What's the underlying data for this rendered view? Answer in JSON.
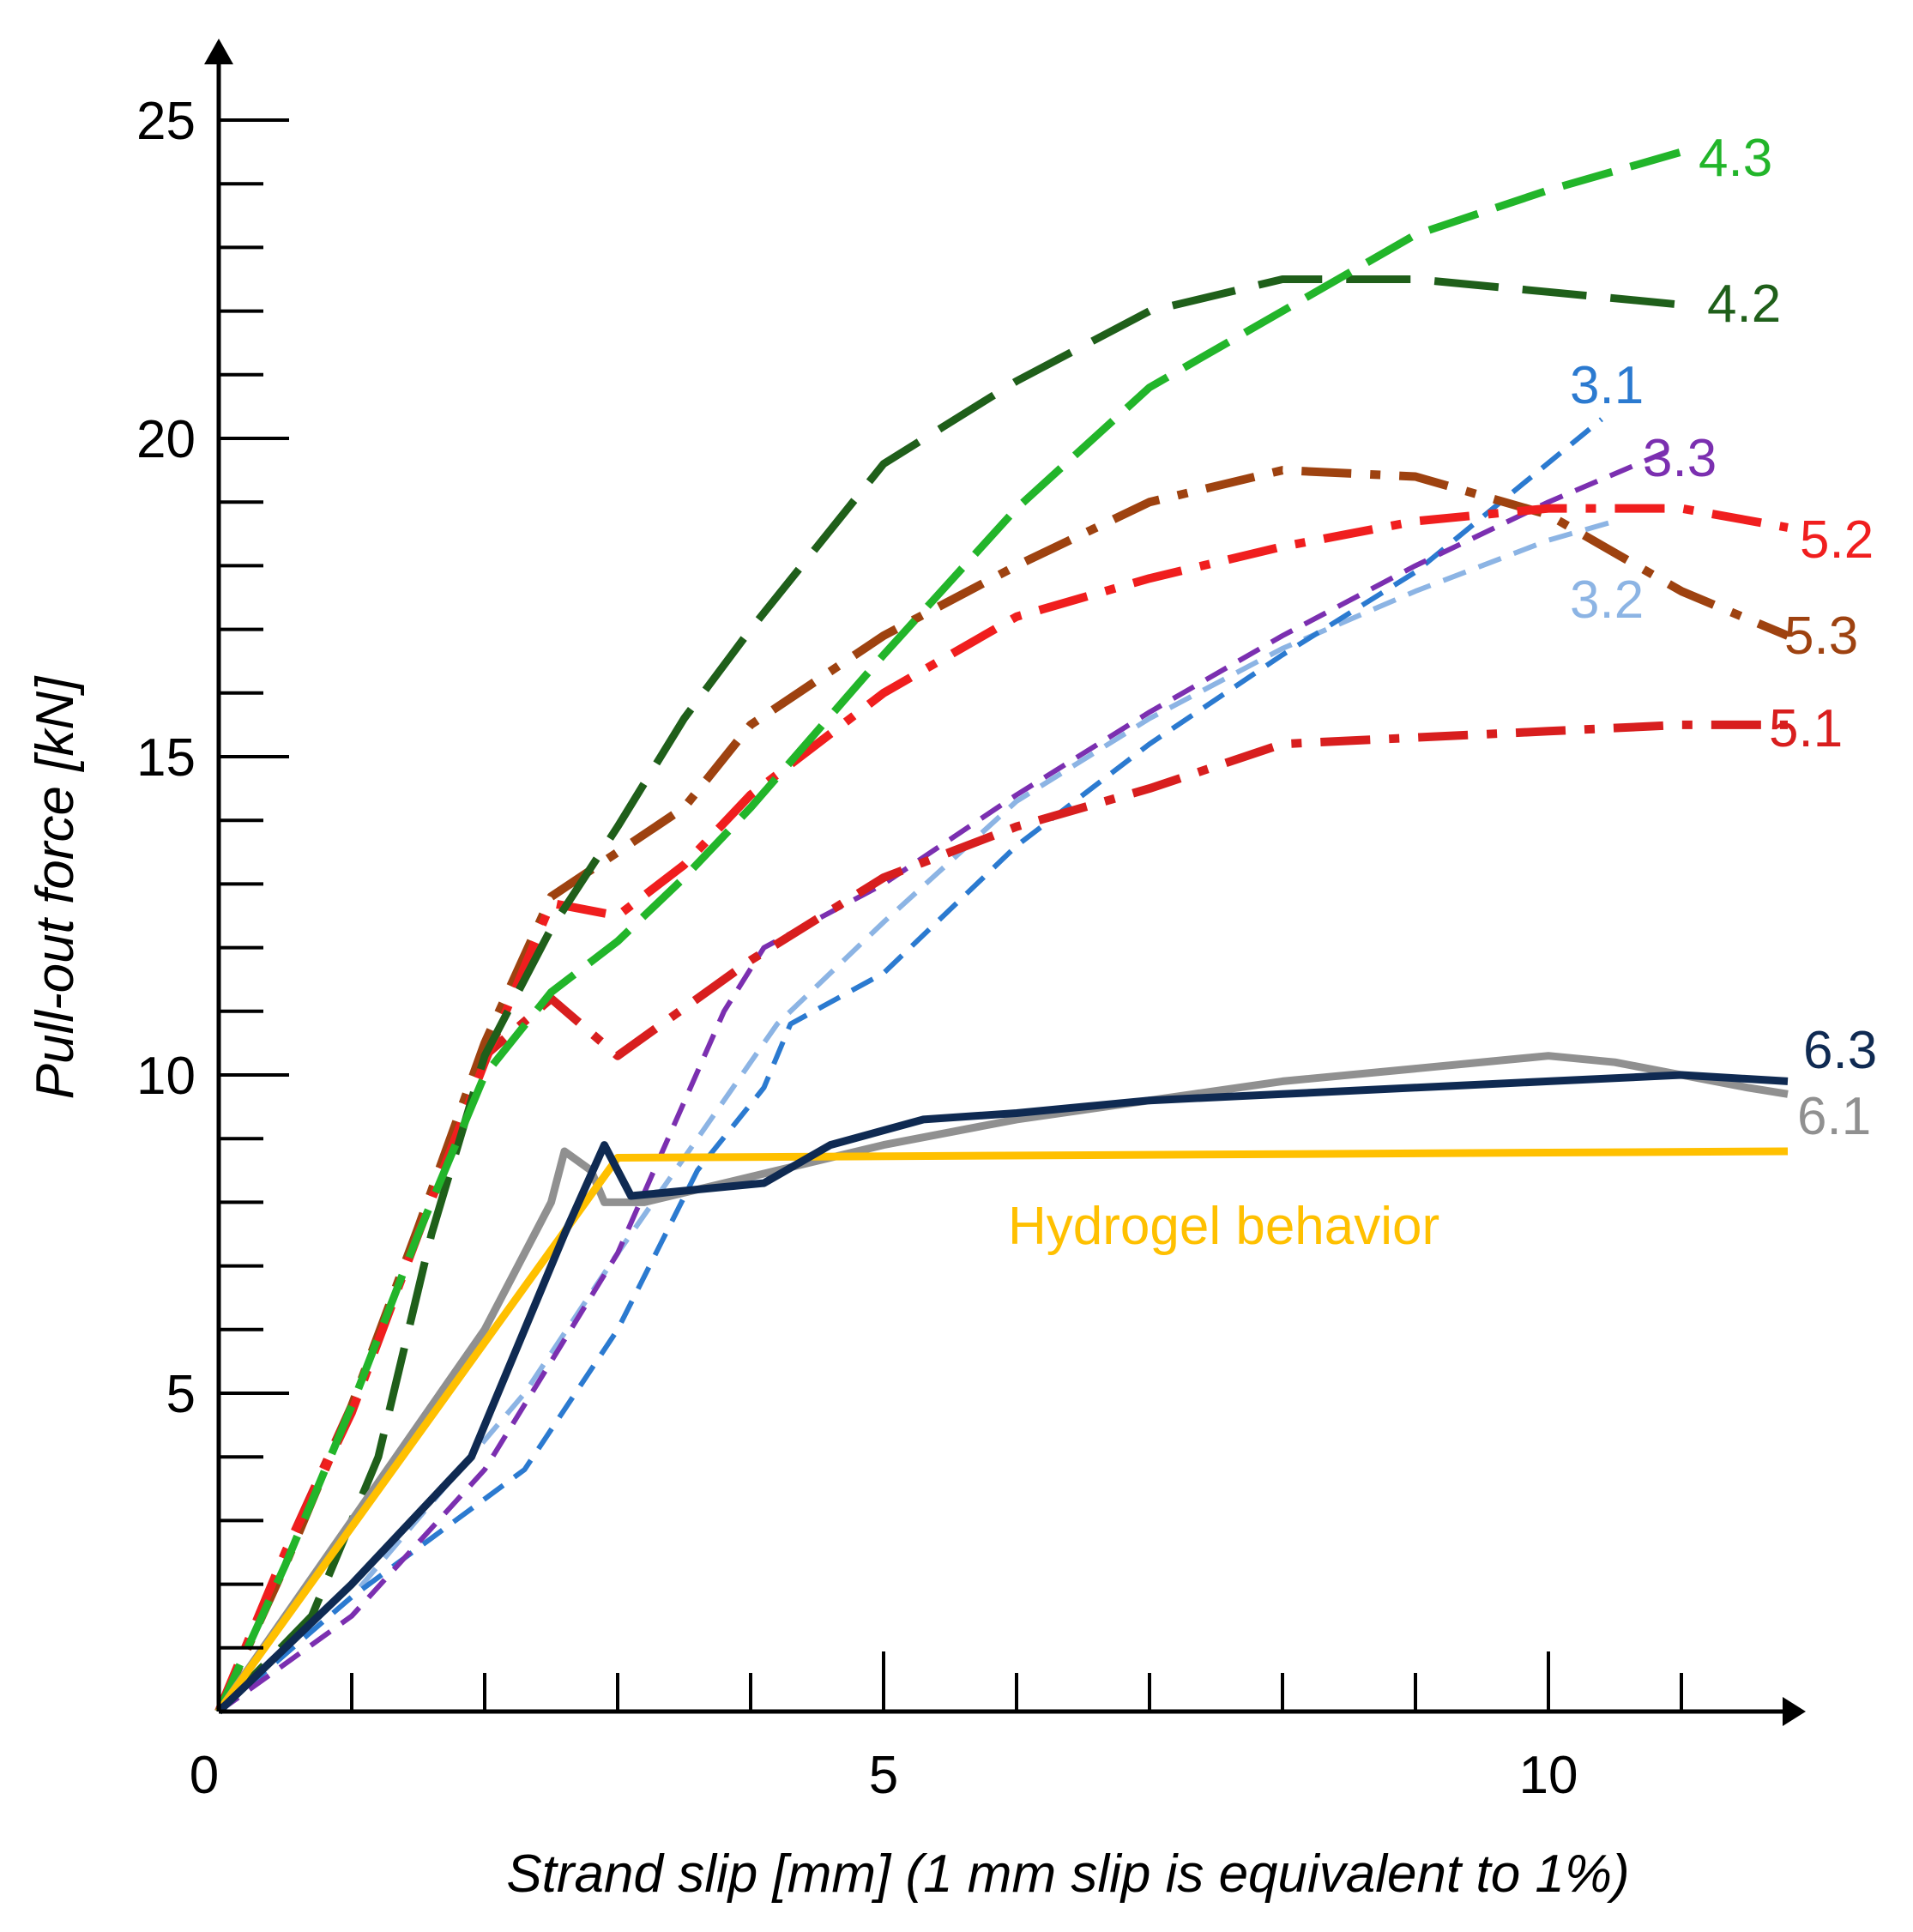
{
  "chart_data": {
    "type": "line",
    "title": "",
    "xlabel": "Strand slip [mm] (1 mm slip is equivalent to 1%)",
    "ylabel": "Pull-out force [kN]",
    "xlim": [
      0,
      12.3
    ],
    "ylim": [
      0,
      26.5
    ],
    "x_major_ticks": [
      0,
      5,
      10
    ],
    "x_minor_step": 1,
    "y_major_ticks": [
      5,
      10,
      15,
      20,
      25
    ],
    "y_minor_step": 1,
    "x_tick_labels": [
      "0",
      "5",
      "10"
    ],
    "y_tick_labels": [
      "5",
      "10",
      "15",
      "20",
      "25"
    ],
    "grid": false,
    "series": [
      {
        "name": "4.3",
        "label": "4.3",
        "color": "#22b52a",
        "dash": "dash",
        "x": [
          0,
          0.5,
          1.0,
          1.5,
          2.0,
          2.5,
          3.0,
          3.5,
          4.0,
          5.0,
          6.0,
          7.0,
          8.0,
          9.0,
          10.0,
          11.0
        ],
        "y": [
          0,
          2.3,
          4.8,
          7.5,
          10.0,
          11.3,
          12.1,
          13.1,
          14.2,
          16.6,
          18.9,
          20.8,
          22.0,
          23.2,
          23.9,
          24.5
        ]
      },
      {
        "name": "4.2",
        "label": "4.2",
        "color": "#1f5f1a",
        "dash": "longdash",
        "x": [
          0,
          0.7,
          1.2,
          1.6,
          2.0,
          2.5,
          3.0,
          3.5,
          4.0,
          5.0,
          6.0,
          7.0,
          8.0,
          9.0,
          10.0,
          11.0
        ],
        "y": [
          0,
          1.5,
          4.0,
          7.5,
          10.3,
          12.3,
          13.9,
          15.6,
          17.0,
          19.6,
          20.9,
          22.0,
          22.5,
          22.5,
          22.3,
          22.1
        ]
      },
      {
        "name": "3.1",
        "label": "3.1",
        "color": "#2b7ad0",
        "dash": "shortdash",
        "x": [
          0,
          1.0,
          2.3,
          3.0,
          3.6,
          4.1,
          4.3,
          5.0,
          6.0,
          7.0,
          8.0,
          9.0,
          10.4
        ],
        "y": [
          0,
          1.8,
          3.8,
          6.0,
          8.5,
          9.8,
          10.8,
          11.6,
          13.6,
          15.2,
          16.6,
          17.9,
          20.3
        ]
      },
      {
        "name": "3.3",
        "label": "3.3",
        "color": "#7b2fb0",
        "dash": "shortdash",
        "x": [
          0,
          1.0,
          2.0,
          3.0,
          3.8,
          4.1,
          5.0,
          6.0,
          7.0,
          8.0,
          9.0,
          10.0,
          10.9
        ],
        "y": [
          0,
          1.5,
          3.8,
          7.2,
          11.0,
          12.0,
          13.0,
          14.4,
          15.7,
          16.9,
          18.0,
          19.0,
          19.8
        ]
      },
      {
        "name": "3.2",
        "label": "3.2",
        "color": "#8cb4e4",
        "dash": "shortdash",
        "x": [
          0,
          1.0,
          2.3,
          3.0,
          3.6,
          4.2,
          5.0,
          6.0,
          7.0,
          8.0,
          9.0,
          10.0,
          10.5
        ],
        "y": [
          0,
          1.8,
          5.0,
          7.2,
          9.0,
          10.8,
          12.4,
          14.3,
          15.6,
          16.7,
          17.6,
          18.4,
          18.7
        ]
      },
      {
        "name": "5.2",
        "label": "5.2",
        "color": "#f01e1e",
        "dash": "dashdot",
        "x": [
          0,
          0.5,
          1.0,
          1.5,
          2.0,
          2.5,
          3.0,
          3.5,
          4.0,
          5.0,
          6.0,
          7.0,
          8.0,
          9.0,
          10.0,
          11.0,
          11.8
        ],
        "y": [
          0,
          2.5,
          4.7,
          7.5,
          10.2,
          12.7,
          12.5,
          13.3,
          14.4,
          16.0,
          17.2,
          17.8,
          18.3,
          18.7,
          18.9,
          18.9,
          18.6
        ]
      },
      {
        "name": "5.3",
        "label": "5.3",
        "color": "#9e4210",
        "dash": "dashdot",
        "x": [
          0,
          0.5,
          1.0,
          1.5,
          2.0,
          2.5,
          3.0,
          3.5,
          4.0,
          5.0,
          6.0,
          7.0,
          8.0,
          9.0,
          10.0,
          11.0,
          11.8
        ],
        "y": [
          0,
          2.3,
          4.8,
          7.6,
          10.5,
          12.8,
          13.5,
          14.2,
          15.5,
          16.9,
          18.0,
          19.0,
          19.5,
          19.4,
          18.8,
          17.6,
          16.9
        ]
      },
      {
        "name": "5.1",
        "label": "5.1",
        "color": "#d81e1e",
        "dash": "dashdot",
        "x": [
          0,
          0.5,
          1.0,
          1.5,
          2.0,
          2.5,
          3.0,
          4.0,
          5.0,
          6.0,
          7.0,
          8.0,
          9.0,
          10.0,
          11.0,
          11.8
        ],
        "y": [
          0,
          2.5,
          4.8,
          7.5,
          10.3,
          11.2,
          10.3,
          11.8,
          13.1,
          13.9,
          14.5,
          15.2,
          15.3,
          15.4,
          15.5,
          15.5
        ]
      },
      {
        "name": "6.3",
        "label": "6.3",
        "color": "#0f2a52",
        "dash": "solid",
        "x": [
          0,
          1.0,
          1.9,
          2.6,
          2.9,
          3.0,
          3.1,
          4.1,
          4.6,
          5.3,
          6.0,
          7.0,
          8.0,
          9.0,
          10.0,
          11.0,
          11.8
        ],
        "y": [
          0,
          2.0,
          4.0,
          7.5,
          8.9,
          8.5,
          8.1,
          8.3,
          8.9,
          9.3,
          9.4,
          9.6,
          9.7,
          9.8,
          9.9,
          10.0,
          9.9
        ]
      },
      {
        "name": "6.1",
        "label": "6.1",
        "color": "#909090",
        "dash": "solid",
        "x": [
          0,
          1.0,
          2.0,
          2.3,
          2.5,
          2.6,
          2.8,
          2.9,
          3.2,
          4.0,
          5.0,
          6.0,
          7.0,
          8.0,
          9.0,
          10.0,
          10.5,
          11.0,
          11.5,
          11.8
        ],
        "y": [
          0,
          3.0,
          6.0,
          7.2,
          8.0,
          8.8,
          8.5,
          8.0,
          8.0,
          8.4,
          8.9,
          9.3,
          9.6,
          9.9,
          10.1,
          10.3,
          10.2,
          10.0,
          9.8,
          9.7
        ]
      },
      {
        "name": "Hydrogel behavior",
        "label": "Hydrogel behavior",
        "color": "#ffc000",
        "dash": "solid",
        "x": [
          0,
          3.0,
          11.8
        ],
        "y": [
          0,
          8.7,
          8.8
        ]
      }
    ]
  }
}
